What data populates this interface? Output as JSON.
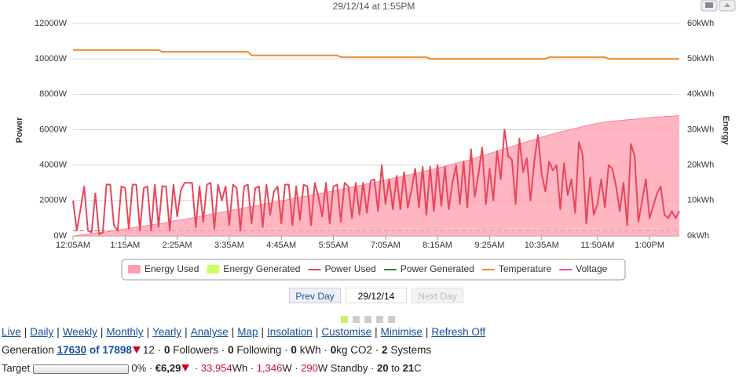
{
  "chart_data": {
    "type": "line",
    "title": "29/12/14 at 1:55PM",
    "ylabel": "Power",
    "y2label": "Energy",
    "x": [
      "12:05AM",
      "12:10AM",
      "12:15AM",
      "12:20AM",
      "12:25AM",
      "12:30AM",
      "12:35AM",
      "12:40AM",
      "12:45AM",
      "12:50AM",
      "12:55AM",
      "1:00AM",
      "1:05AM",
      "1:10AM",
      "1:15AM",
      "1:20AM",
      "1:25AM",
      "1:30AM",
      "1:35AM",
      "1:40AM",
      "1:45AM",
      "1:50AM",
      "1:55AM",
      "2:00AM",
      "2:05AM",
      "2:10AM",
      "2:15AM",
      "2:20AM",
      "2:25AM",
      "2:30AM",
      "2:35AM",
      "2:40AM",
      "2:45AM",
      "2:50AM",
      "2:55AM",
      "3:00AM",
      "3:05AM",
      "3:10AM",
      "3:15AM",
      "3:20AM",
      "3:25AM",
      "3:30AM",
      "3:35AM",
      "3:40AM",
      "3:45AM",
      "3:50AM",
      "3:55AM",
      "4:00AM",
      "4:05AM",
      "4:10AM",
      "4:15AM",
      "4:20AM",
      "4:25AM",
      "4:30AM",
      "4:35AM",
      "4:40AM",
      "4:45AM",
      "4:50AM",
      "4:55AM",
      "5:00AM",
      "5:05AM",
      "5:10AM",
      "5:15AM",
      "5:20AM",
      "5:25AM",
      "5:30AM",
      "5:35AM",
      "5:40AM",
      "5:45AM",
      "5:50AM",
      "5:55AM",
      "6:00AM",
      "6:05AM",
      "6:10AM",
      "6:15AM",
      "6:20AM",
      "6:25AM",
      "6:30AM",
      "6:35AM",
      "6:40AM",
      "6:45AM",
      "6:50AM",
      "6:55AM",
      "7:00AM",
      "7:05AM",
      "7:10AM",
      "7:15AM",
      "7:20AM",
      "7:25AM",
      "7:30AM",
      "7:35AM",
      "7:40AM",
      "7:45AM",
      "7:50AM",
      "7:55AM",
      "8:00AM",
      "8:05AM",
      "8:10AM",
      "8:15AM",
      "8:20AM",
      "8:25AM",
      "8:30AM",
      "8:35AM",
      "8:40AM",
      "8:45AM",
      "8:50AM",
      "8:55AM",
      "9:00AM",
      "9:05AM",
      "9:10AM",
      "9:15AM",
      "9:20AM",
      "9:25AM",
      "9:30AM",
      "9:35AM",
      "9:40AM",
      "9:45AM",
      "9:50AM",
      "9:55AM",
      "10:00AM",
      "10:05AM",
      "10:10AM",
      "10:15AM",
      "10:20AM",
      "10:25AM",
      "10:30AM",
      "10:35AM",
      "10:40AM",
      "10:45AM",
      "10:50AM",
      "10:55AM",
      "11:00AM",
      "11:05AM",
      "11:10AM",
      "11:15AM",
      "11:20AM",
      "11:25AM",
      "11:30AM",
      "11:35AM",
      "11:40AM",
      "11:45AM",
      "11:50AM",
      "11:55AM",
      "12:00PM",
      "12:05PM",
      "12:10PM",
      "12:15PM",
      "12:20PM",
      "12:25PM",
      "12:30PM",
      "12:35PM",
      "12:40PM",
      "12:45PM",
      "12:50PM",
      "12:55PM",
      "1:00PM",
      "1:05PM",
      "1:10PM",
      "1:15PM",
      "1:20PM",
      "1:25PM",
      "1:30PM",
      "1:35PM",
      "1:40PM"
    ],
    "xticks": [
      "12:05AM",
      "1:15AM",
      "2:25AM",
      "3:35AM",
      "4:45AM",
      "5:55AM",
      "7:05AM",
      "8:15AM",
      "9:25AM",
      "10:35AM",
      "11:50AM",
      "1:00PM"
    ],
    "ylim": [
      0,
      12000
    ],
    "yticks": [
      {
        "value": 0,
        "label": "0W"
      },
      {
        "value": 2000,
        "label": "2000W"
      },
      {
        "value": 4000,
        "label": "4000W"
      },
      {
        "value": 6000,
        "label": "6000W"
      },
      {
        "value": 8000,
        "label": "8000W"
      },
      {
        "value": 10000,
        "label": "10000W"
      },
      {
        "value": 12000,
        "label": "12000W"
      }
    ],
    "y2lim": [
      0,
      60
    ],
    "y2ticks": [
      {
        "value": 0,
        "label": "0kWh"
      },
      {
        "value": 10,
        "label": "10kWh"
      },
      {
        "value": 20,
        "label": "20kWh"
      },
      {
        "value": 30,
        "label": "30kWh"
      },
      {
        "value": 40,
        "label": "40kWh"
      },
      {
        "value": 50,
        "label": "50kWh"
      },
      {
        "value": 60,
        "label": "60kWh"
      }
    ],
    "grid": true,
    "legend": [
      {
        "name": "Energy Used",
        "color": "#ff9eae",
        "symbol": "area"
      },
      {
        "name": "Energy Generated",
        "color": "#ccff66",
        "symbol": "area"
      },
      {
        "name": "Power Used",
        "color": "#e8465a",
        "symbol": "line"
      },
      {
        "name": "Power Generated",
        "color": "#2b8a2b",
        "symbol": "line"
      },
      {
        "name": "Temperature",
        "color": "#f0892b",
        "symbol": "line"
      },
      {
        "name": "Voltage",
        "color": "#e64ca0",
        "symbol": "line"
      }
    ],
    "series": [
      {
        "name": "Energy Used",
        "color": "#ff9eae",
        "axis": "y2",
        "kind": "area",
        "values": [
          0,
          0.1,
          0.3,
          0.4,
          0.5,
          0.7,
          0.8,
          0.9,
          1.0,
          1.2,
          1.3,
          1.5,
          1.6,
          1.8,
          2.0,
          2.1,
          2.3,
          2.5,
          2.6,
          2.8,
          2.9,
          3.1,
          3.3,
          3.4,
          3.6,
          3.8,
          4.0,
          4.2,
          4.4,
          4.5,
          4.7,
          4.9,
          5.1,
          5.3,
          5.5,
          5.7,
          5.9,
          6.1,
          6.3,
          6.5,
          6.7,
          6.9,
          7.1,
          7.3,
          7.5,
          7.7,
          7.9,
          8.1,
          8.3,
          8.5,
          8.7,
          8.9,
          9.1,
          9.3,
          9.5,
          9.7,
          9.9,
          10.1,
          10.3,
          10.5,
          10.7,
          10.9,
          11.1,
          11.3,
          11.5,
          11.7,
          11.9,
          12.1,
          12.3,
          12.5,
          12.7,
          12.9,
          13.1,
          13.3,
          13.6,
          13.8,
          14.0,
          14.2,
          14.4,
          14.7,
          14.9,
          15.1,
          15.3,
          15.6,
          15.8,
          16.0,
          16.3,
          16.5,
          16.7,
          17.0,
          17.2,
          17.4,
          17.7,
          17.9,
          18.1,
          18.4,
          18.6,
          18.9,
          19.2,
          19.4,
          19.7,
          20.0,
          20.3,
          20.5,
          20.8,
          21.1,
          21.3,
          21.6,
          21.9,
          22.3,
          22.6,
          22.9,
          23.3,
          23.6,
          23.9,
          24.3,
          24.6,
          24.9,
          25.3,
          25.6,
          25.9,
          26.3,
          26.6,
          26.9,
          27.2,
          27.6,
          27.9,
          28.2,
          28.5,
          28.8,
          29.1,
          29.4,
          29.6,
          29.9,
          30.1,
          30.4,
          30.6,
          30.9,
          31.1,
          31.4,
          31.6,
          31.8,
          32.0,
          32.2,
          32.3,
          32.4,
          32.5,
          32.6,
          32.7,
          32.8,
          32.9,
          33.0,
          33.1,
          33.2,
          33.3,
          33.4,
          33.5,
          33.6,
          33.6,
          33.7,
          33.8,
          33.8,
          33.9,
          33.95
        ]
      },
      {
        "name": "Power Used",
        "color": "#e8465a",
        "axis": "y",
        "kind": "line",
        "values": [
          2000,
          300,
          1500,
          2800,
          300,
          200,
          2400,
          100,
          200,
          2900,
          2900,
          600,
          300,
          2800,
          2700,
          400,
          2900,
          2900,
          300,
          2700,
          2800,
          300,
          2900,
          500,
          2800,
          2800,
          300,
          2900,
          1100,
          2600,
          3000,
          3000,
          3000,
          500,
          2800,
          800,
          2900,
          3000,
          400,
          2900,
          2000,
          2800,
          600,
          2900,
          2700,
          300,
          2800,
          2900,
          700,
          2700,
          2800,
          500,
          2900,
          1200,
          2500,
          2800,
          700,
          2900,
          2900,
          600,
          2800,
          900,
          2900,
          2800,
          600,
          3000,
          2200,
          1100,
          3000,
          700,
          2800,
          2900,
          800,
          3000,
          2800,
          1000,
          3000,
          1200,
          3000,
          1300,
          3100,
          3200,
          1400,
          4000,
          1800,
          3200,
          1500,
          3400,
          1500,
          3600,
          1600,
          2600,
          3800,
          1600,
          3900,
          1200,
          3900,
          1400,
          4000,
          1700,
          3900,
          1500,
          3000,
          4000,
          1800,
          4200,
          1600,
          4900,
          2200,
          3500,
          5000,
          1800,
          3800,
          2000,
          4800,
          3200,
          6000,
          4500,
          4300,
          1800,
          5500,
          3600,
          4400,
          2000,
          4200,
          5700,
          3500,
          2500,
          4200,
          3700,
          4000,
          1500,
          4100,
          2300,
          3200,
          1300,
          5300,
          4600,
          700,
          3300,
          1200,
          1800,
          3200,
          1600,
          4000,
          3800,
          2800,
          1400,
          3000,
          600,
          5200,
          4500,
          800,
          2000,
          3200,
          1000,
          1700,
          2400,
          2800,
          1200,
          1000,
          1400,
          1000,
          1400
        ]
      },
      {
        "name": "Temperature",
        "color": "#f0892b",
        "axis": "y",
        "kind": "line",
        "values": [
          10500,
          10500,
          10500,
          10500,
          10500,
          10500,
          10500,
          10500,
          10500,
          10500,
          10500,
          10500,
          10500,
          10500,
          10500,
          10500,
          10500,
          10500,
          10500,
          10500,
          10500,
          10500,
          10500,
          10500,
          10400,
          10400,
          10400,
          10400,
          10400,
          10400,
          10400,
          10400,
          10400,
          10400,
          10400,
          10400,
          10400,
          10400,
          10400,
          10400,
          10400,
          10400,
          10400,
          10400,
          10400,
          10400,
          10400,
          10400,
          10200,
          10200,
          10200,
          10200,
          10200,
          10200,
          10200,
          10200,
          10200,
          10200,
          10200,
          10200,
          10200,
          10200,
          10200,
          10200,
          10200,
          10200,
          10200,
          10200,
          10200,
          10200,
          10200,
          10200,
          10100,
          10100,
          10100,
          10100,
          10100,
          10100,
          10100,
          10100,
          10100,
          10100,
          10100,
          10100,
          10100,
          10100,
          10100,
          10100,
          10100,
          10100,
          10100,
          10100,
          10100,
          10100,
          10100,
          10100,
          10000,
          10000,
          10000,
          10000,
          10000,
          10000,
          10000,
          10000,
          10000,
          10000,
          10000,
          10000,
          10000,
          10000,
          10000,
          10000,
          10000,
          10000,
          10000,
          10000,
          10000,
          10000,
          10000,
          10000,
          10000,
          10000,
          10000,
          10000,
          10000,
          10000,
          10000,
          10000,
          10100,
          10100,
          10100,
          10100,
          10100,
          10100,
          10100,
          10100,
          10100,
          10100,
          10100,
          10100,
          10100,
          10100,
          10100,
          10100,
          10000,
          10000,
          10000,
          10000,
          10000,
          10000,
          10000,
          10000,
          10000,
          10000,
          10000,
          10000,
          10000,
          10000,
          10000,
          10000,
          10000,
          10000,
          10000,
          10000
        ]
      }
    ]
  },
  "controls": {
    "prev": "Prev Day",
    "date": "29/12/14",
    "next": "Next Day"
  },
  "nav": {
    "separator": "|",
    "links": [
      "Live",
      "Daily",
      "Weekly",
      "Monthly",
      "Yearly",
      "Analyse",
      "Map",
      "Insolation",
      "Customise",
      "Minimise",
      "Refresh Off"
    ]
  },
  "status": {
    "separator": "·",
    "generation": {
      "label": "Generation",
      "output": 17630,
      "of": "of 17898",
      "rank": 12,
      "followers": 0,
      "followers_label": "Followers",
      "following": 0,
      "following_label": "Following",
      "kwh": 0,
      "kwh_label": "kWh",
      "co2": 0,
      "co2_label": "kg CO2",
      "systems": 2,
      "systems_label": "Systems"
    },
    "target": {
      "label": "Target",
      "progress": {
        "value": 0,
        "label": "0%"
      },
      "cost": "€6,29",
      "energy": "33,954",
      "energy_unit": "Wh",
      "power": "1,346",
      "power_unit": "W",
      "standby": 290,
      "standby_unit": "W Standby",
      "temp_from": 20,
      "to": "to",
      "temp_to": 21,
      "temp_unit": "C"
    }
  }
}
